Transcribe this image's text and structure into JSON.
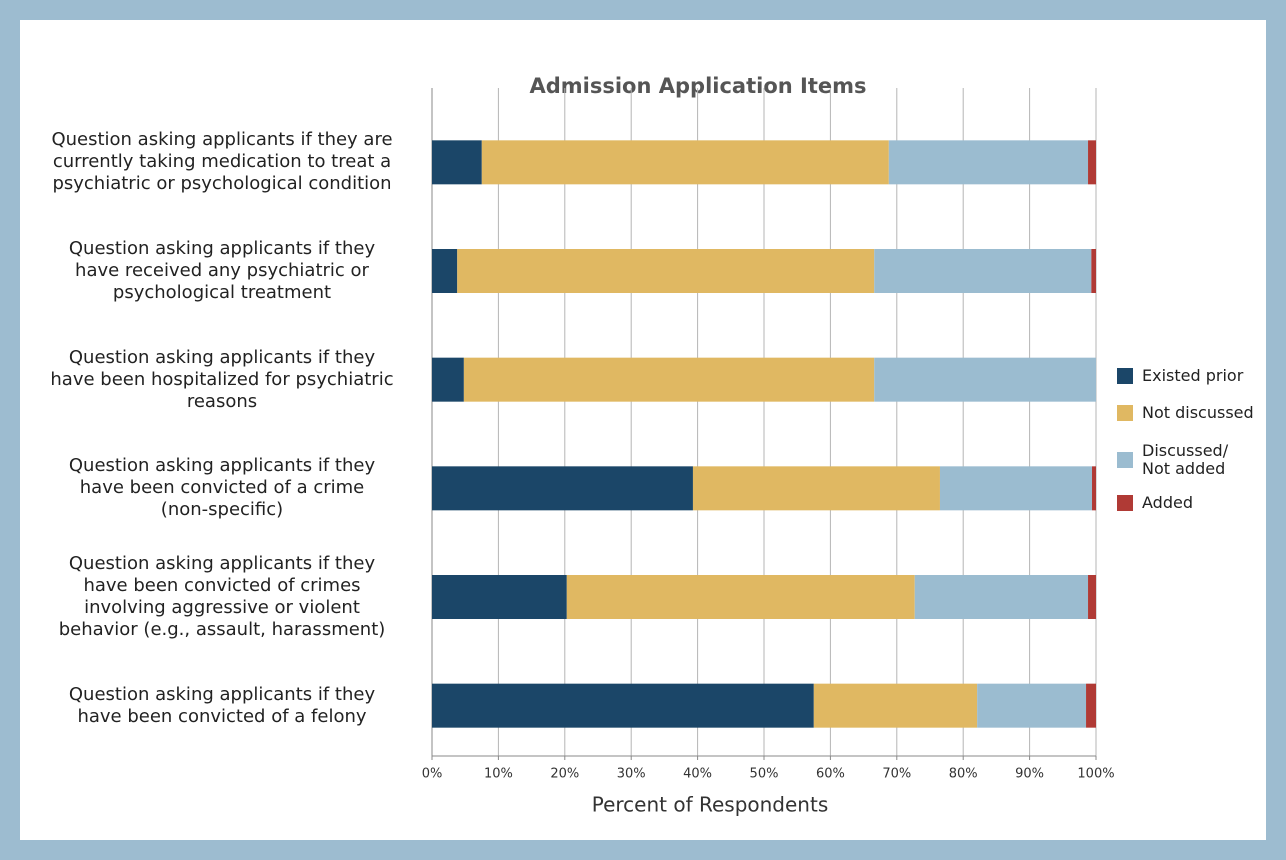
{
  "chart_data": {
    "type": "stacked_barh",
    "title": "Admission Application Items",
    "x_label": "Percent of Respondents",
    "categories": [
      "Question asking applicants if they are\ncurrently taking medication to treat a\npsychiatric or psychological condition",
      "Question asking applicants if they\nhave received any psychiatric or\npsychological treatment",
      "Question asking applicants if they\nhave been hospitalized for psychiatric\nreasons",
      "Question asking applicants if they\nhave been convicted of a crime\n(non-specific)",
      "Question asking applicants if they\nhave been convicted of crimes\ninvolving aggressive or violent\nbehavior (e.g., assault, harassment)",
      "Question asking applicants if they\nhave been convicted of a felony"
    ],
    "series": [
      {
        "name": "Existed prior",
        "color": "#1b4668",
        "values": [
          7.5,
          3.8,
          4.8,
          39.3,
          20.3,
          57.5
        ]
      },
      {
        "name": "Not discussed",
        "color": "#e0b862",
        "values": [
          61.3,
          62.8,
          61.8,
          37.2,
          52.4,
          24.6
        ]
      },
      {
        "name": "Discussed/\nNot added",
        "color": "#9bbcd0",
        "values": [
          30.0,
          32.7,
          33.4,
          22.9,
          26.1,
          16.4
        ]
      },
      {
        "name": "Added",
        "color": "#b03a35",
        "values": [
          1.2,
          0.7,
          0,
          0.6,
          1.2,
          1.5
        ]
      }
    ],
    "xlim": [
      0,
      100
    ],
    "xticks": [
      {
        "value": 0,
        "label": "0%"
      },
      {
        "value": 10,
        "label": "10%"
      },
      {
        "value": 20,
        "label": "20%"
      },
      {
        "value": 30,
        "label": "30%"
      },
      {
        "value": 40,
        "label": "40%"
      },
      {
        "value": 50,
        "label": "50%"
      },
      {
        "value": 60,
        "label": "60%"
      },
      {
        "value": 70,
        "label": "70%"
      },
      {
        "value": 80,
        "label": "80%"
      },
      {
        "value": 90,
        "label": "90%"
      },
      {
        "value": 100,
        "label": "100%"
      }
    ],
    "grid": true,
    "legend": "right"
  }
}
